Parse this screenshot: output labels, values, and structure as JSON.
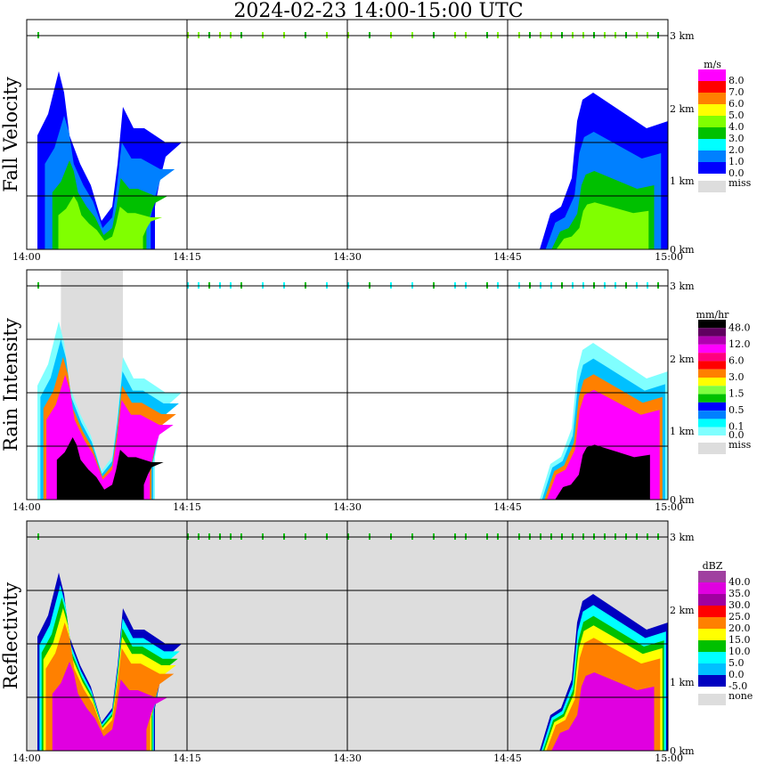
{
  "title": "2024-02-23  14:00-15:00 UTC",
  "chart_data": {
    "type": "heatmap",
    "x_ticks": [
      "14:00",
      "14:15",
      "14:30",
      "14:45",
      "15:00"
    ],
    "x_range_minutes": [
      0,
      60
    ],
    "y_ticks": [
      "3 km",
      "2 km",
      "1 km",
      "0 km"
    ],
    "y_range_km": [
      0,
      3.2
    ],
    "echoes": [
      [
        [
          1,
          1.6
        ],
        [
          2,
          1.9
        ],
        [
          3,
          2.5
        ],
        [
          3.5,
          2.2
        ],
        [
          4,
          1.6
        ],
        [
          5,
          1.2
        ],
        [
          6,
          0.9
        ],
        [
          7,
          0.4
        ],
        [
          8,
          0.6
        ],
        [
          8.5,
          1.2
        ],
        [
          9,
          2.0
        ],
        [
          10,
          1.7
        ],
        [
          11,
          1.7
        ],
        [
          12,
          1.6
        ],
        [
          13,
          1.5
        ],
        [
          14.5,
          1.5
        ],
        [
          13,
          1.3
        ],
        [
          12.5,
          1.0
        ],
        [
          12,
          0.6
        ],
        [
          12,
          0
        ],
        [
          1,
          0
        ]
      ],
      [
        [
          48,
          0
        ],
        [
          49,
          0.5
        ],
        [
          50,
          0.6
        ],
        [
          51,
          1.0
        ],
        [
          51.5,
          1.8
        ],
        [
          52,
          2.1
        ],
        [
          53,
          2.2
        ],
        [
          54,
          2.1
        ],
        [
          56,
          1.9
        ],
        [
          58,
          1.7
        ],
        [
          60,
          1.8
        ],
        [
          60,
          0
        ]
      ]
    ],
    "cloud_top_times": [
      1,
      15,
      16,
      17,
      18,
      19,
      20,
      22,
      24,
      26,
      28,
      30,
      32,
      34,
      36,
      38,
      40,
      41,
      43,
      44,
      46,
      47,
      48,
      49,
      50,
      51,
      52,
      53,
      54,
      55,
      56,
      57,
      58,
      59
    ],
    "panels": [
      {
        "ylabel": "Fall Velocity",
        "unit": "m/s",
        "missing_label": "miss",
        "background": "#ffffff",
        "gray_band": null,
        "legend": [
          {
            "c": "#ff00ff",
            "v": "8.0"
          },
          {
            "c": "#ff0000",
            "v": "7.0"
          },
          {
            "c": "#ff8000",
            "v": "6.0"
          },
          {
            "c": "#ffff00",
            "v": "5.0"
          },
          {
            "c": "#80ff00",
            "v": "4.0"
          },
          {
            "c": "#00c000",
            "v": "3.0"
          },
          {
            "c": "#00ffff",
            "v": "2.0"
          },
          {
            "c": "#0080ff",
            "v": "1.0"
          },
          {
            "c": "#0000ff",
            "v": "0.0"
          }
        ],
        "layers": [
          {
            "c": "#0000ff",
            "s": 1.0
          },
          {
            "c": "#0080ff",
            "s": 0.75
          },
          {
            "c": "#00c000",
            "s": 0.5
          },
          {
            "c": "#80ff00",
            "s": 0.3
          }
        ],
        "top_color": "#80ff00"
      },
      {
        "ylabel": "Rain Intensity",
        "unit": "mm/hr",
        "missing_label": "miss",
        "background": "#ffffff",
        "gray_band": [
          3.2,
          9
        ],
        "legend": [
          {
            "c": "#000000",
            "v": "48.0"
          },
          {
            "c": "#600060",
            "v": ""
          },
          {
            "c": "#b000b0",
            "v": "12.0"
          },
          {
            "c": "#ff00ff",
            "v": ""
          },
          {
            "c": "#ff0080",
            "v": "6.0"
          },
          {
            "c": "#ff0000",
            "v": ""
          },
          {
            "c": "#ff8000",
            "v": "3.0"
          },
          {
            "c": "#ffff00",
            "v": ""
          },
          {
            "c": "#80ff40",
            "v": "1.5"
          },
          {
            "c": "#00c000",
            "v": ""
          },
          {
            "c": "#0000ff",
            "v": "0.5"
          },
          {
            "c": "#0080ff",
            "v": ""
          },
          {
            "c": "#00ffff",
            "v": "0.1"
          },
          {
            "c": "#80ffff",
            "v": "0.0"
          }
        ],
        "layers": [
          {
            "c": "#80ffff",
            "s": 1.0
          },
          {
            "c": "#00c0ff",
            "s": 0.9
          },
          {
            "c": "#ff8000",
            "s": 0.8
          },
          {
            "c": "#ff00ff",
            "s": 0.7
          },
          {
            "c": "#000000",
            "s": 0.35
          }
        ],
        "top_color": "#00ffff"
      },
      {
        "ylabel": "Reflectivity",
        "unit": "dBZ",
        "missing_label": "none",
        "background": "#dddddd",
        "gray_band": null,
        "legend": [
          {
            "c": "#a040a0",
            "v": "40.0"
          },
          {
            "c": "#e000e0",
            "v": "35.0"
          },
          {
            "c": "#a000a0",
            "v": "30.0"
          },
          {
            "c": "#ff0000",
            "v": "25.0"
          },
          {
            "c": "#ff8000",
            "v": "20.0"
          },
          {
            "c": "#ffff00",
            "v": "15.0"
          },
          {
            "c": "#00c000",
            "v": "10.0"
          },
          {
            "c": "#00ffff",
            "v": "5.0"
          },
          {
            "c": "#00c0ff",
            "v": "0.0"
          },
          {
            "c": "#0000c0",
            "v": "-5.0"
          }
        ],
        "layers": [
          {
            "c": "#0000c0",
            "s": 1.0
          },
          {
            "c": "#00ffff",
            "s": 0.93
          },
          {
            "c": "#00c000",
            "s": 0.86
          },
          {
            "c": "#ffff00",
            "s": 0.8
          },
          {
            "c": "#ff8000",
            "s": 0.72
          },
          {
            "c": "#e000e0",
            "s": 0.5
          }
        ],
        "top_color": "#00c000"
      }
    ]
  }
}
